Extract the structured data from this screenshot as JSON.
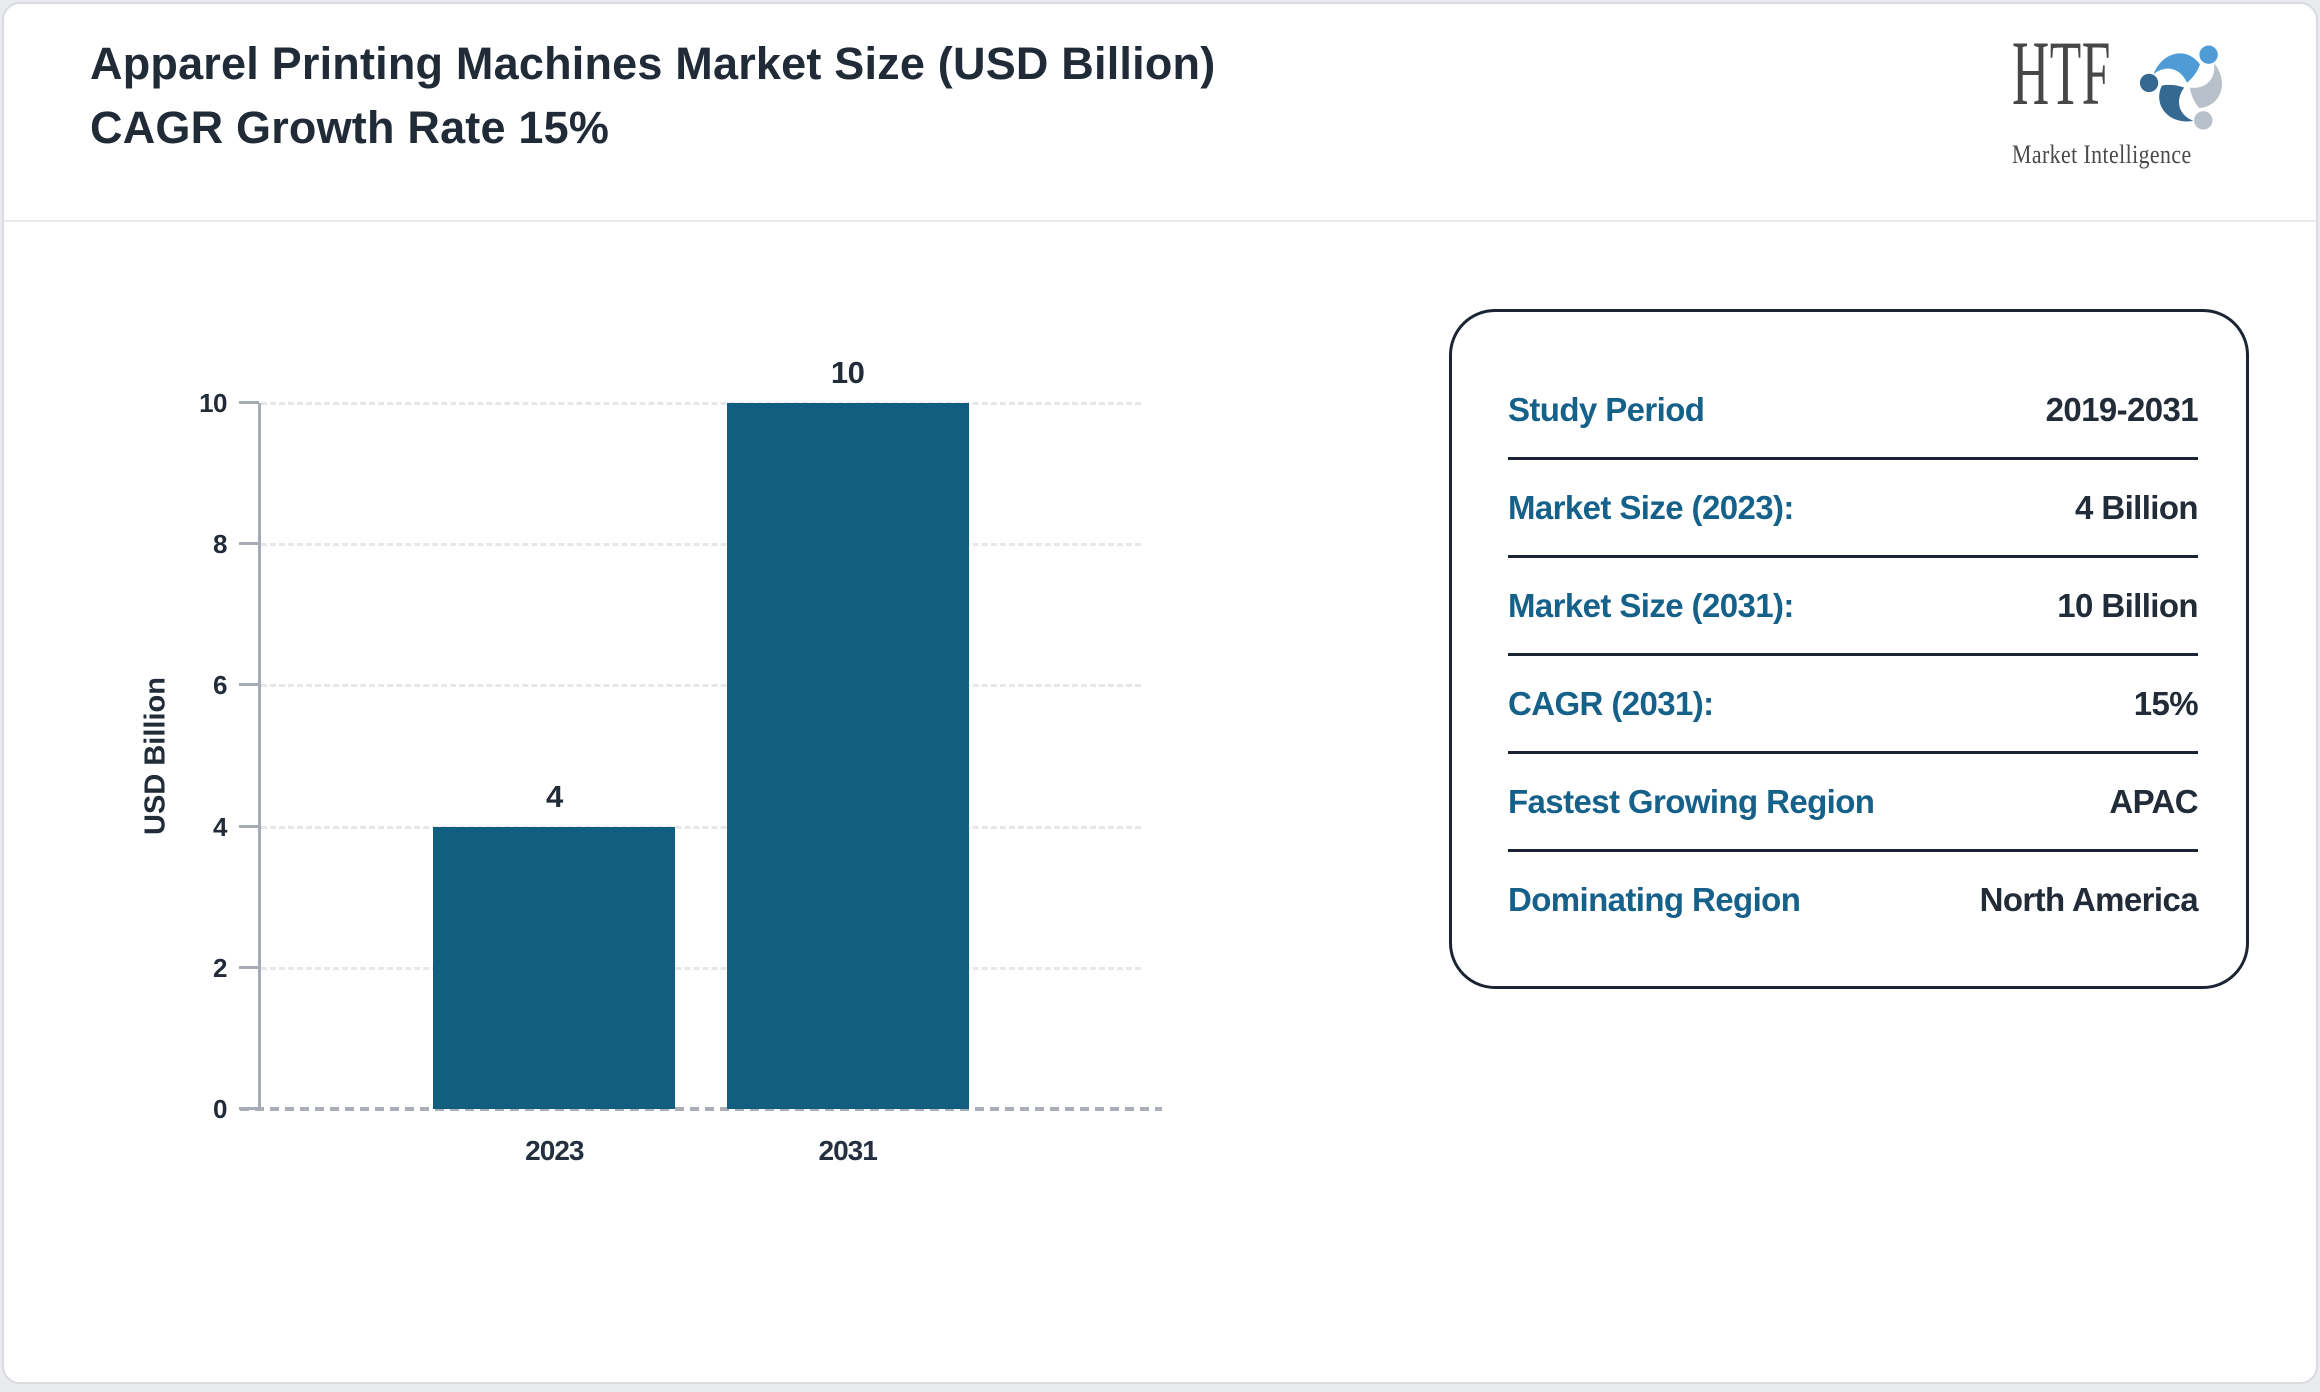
{
  "header": {
    "title": "Apparel Printing Machines Market Size (USD Billion) CAGR Growth Rate 15%"
  },
  "logo": {
    "brand": "HTF",
    "tagline": "Market Intelligence"
  },
  "chart_data": {
    "type": "bar",
    "categories": [
      "2023",
      "2031"
    ],
    "values": [
      4,
      10
    ],
    "value_labels": [
      "4",
      "10"
    ],
    "title": "",
    "xlabel": "",
    "ylabel": "USD Billion",
    "ylim": [
      0,
      10
    ],
    "yticks": [
      0,
      2,
      4,
      6,
      8,
      10
    ],
    "grid": "horizontal-dashed",
    "legend": "none",
    "bar_color": "#115e80"
  },
  "panel": {
    "rows": [
      {
        "label": "Study Period",
        "value": "2019-2031"
      },
      {
        "label": "Market Size (2023):",
        "value": "4 Billion"
      },
      {
        "label": "Market Size (2031):",
        "value": "10 Billion"
      },
      {
        "label": "CAGR (2031):",
        "value": "15%"
      },
      {
        "label": "Fastest Growing Region",
        "value": "APAC"
      },
      {
        "label": "Dominating Region",
        "value": "North America"
      }
    ]
  },
  "colors": {
    "bar": "#115e80",
    "label_teal": "#15618a",
    "dark_text": "#222b38",
    "axis_gray": "#a6abb5",
    "logo_light_blue": "#4f9bd5",
    "logo_dark_blue": "#366992",
    "logo_gray": "#b8c1ca"
  }
}
